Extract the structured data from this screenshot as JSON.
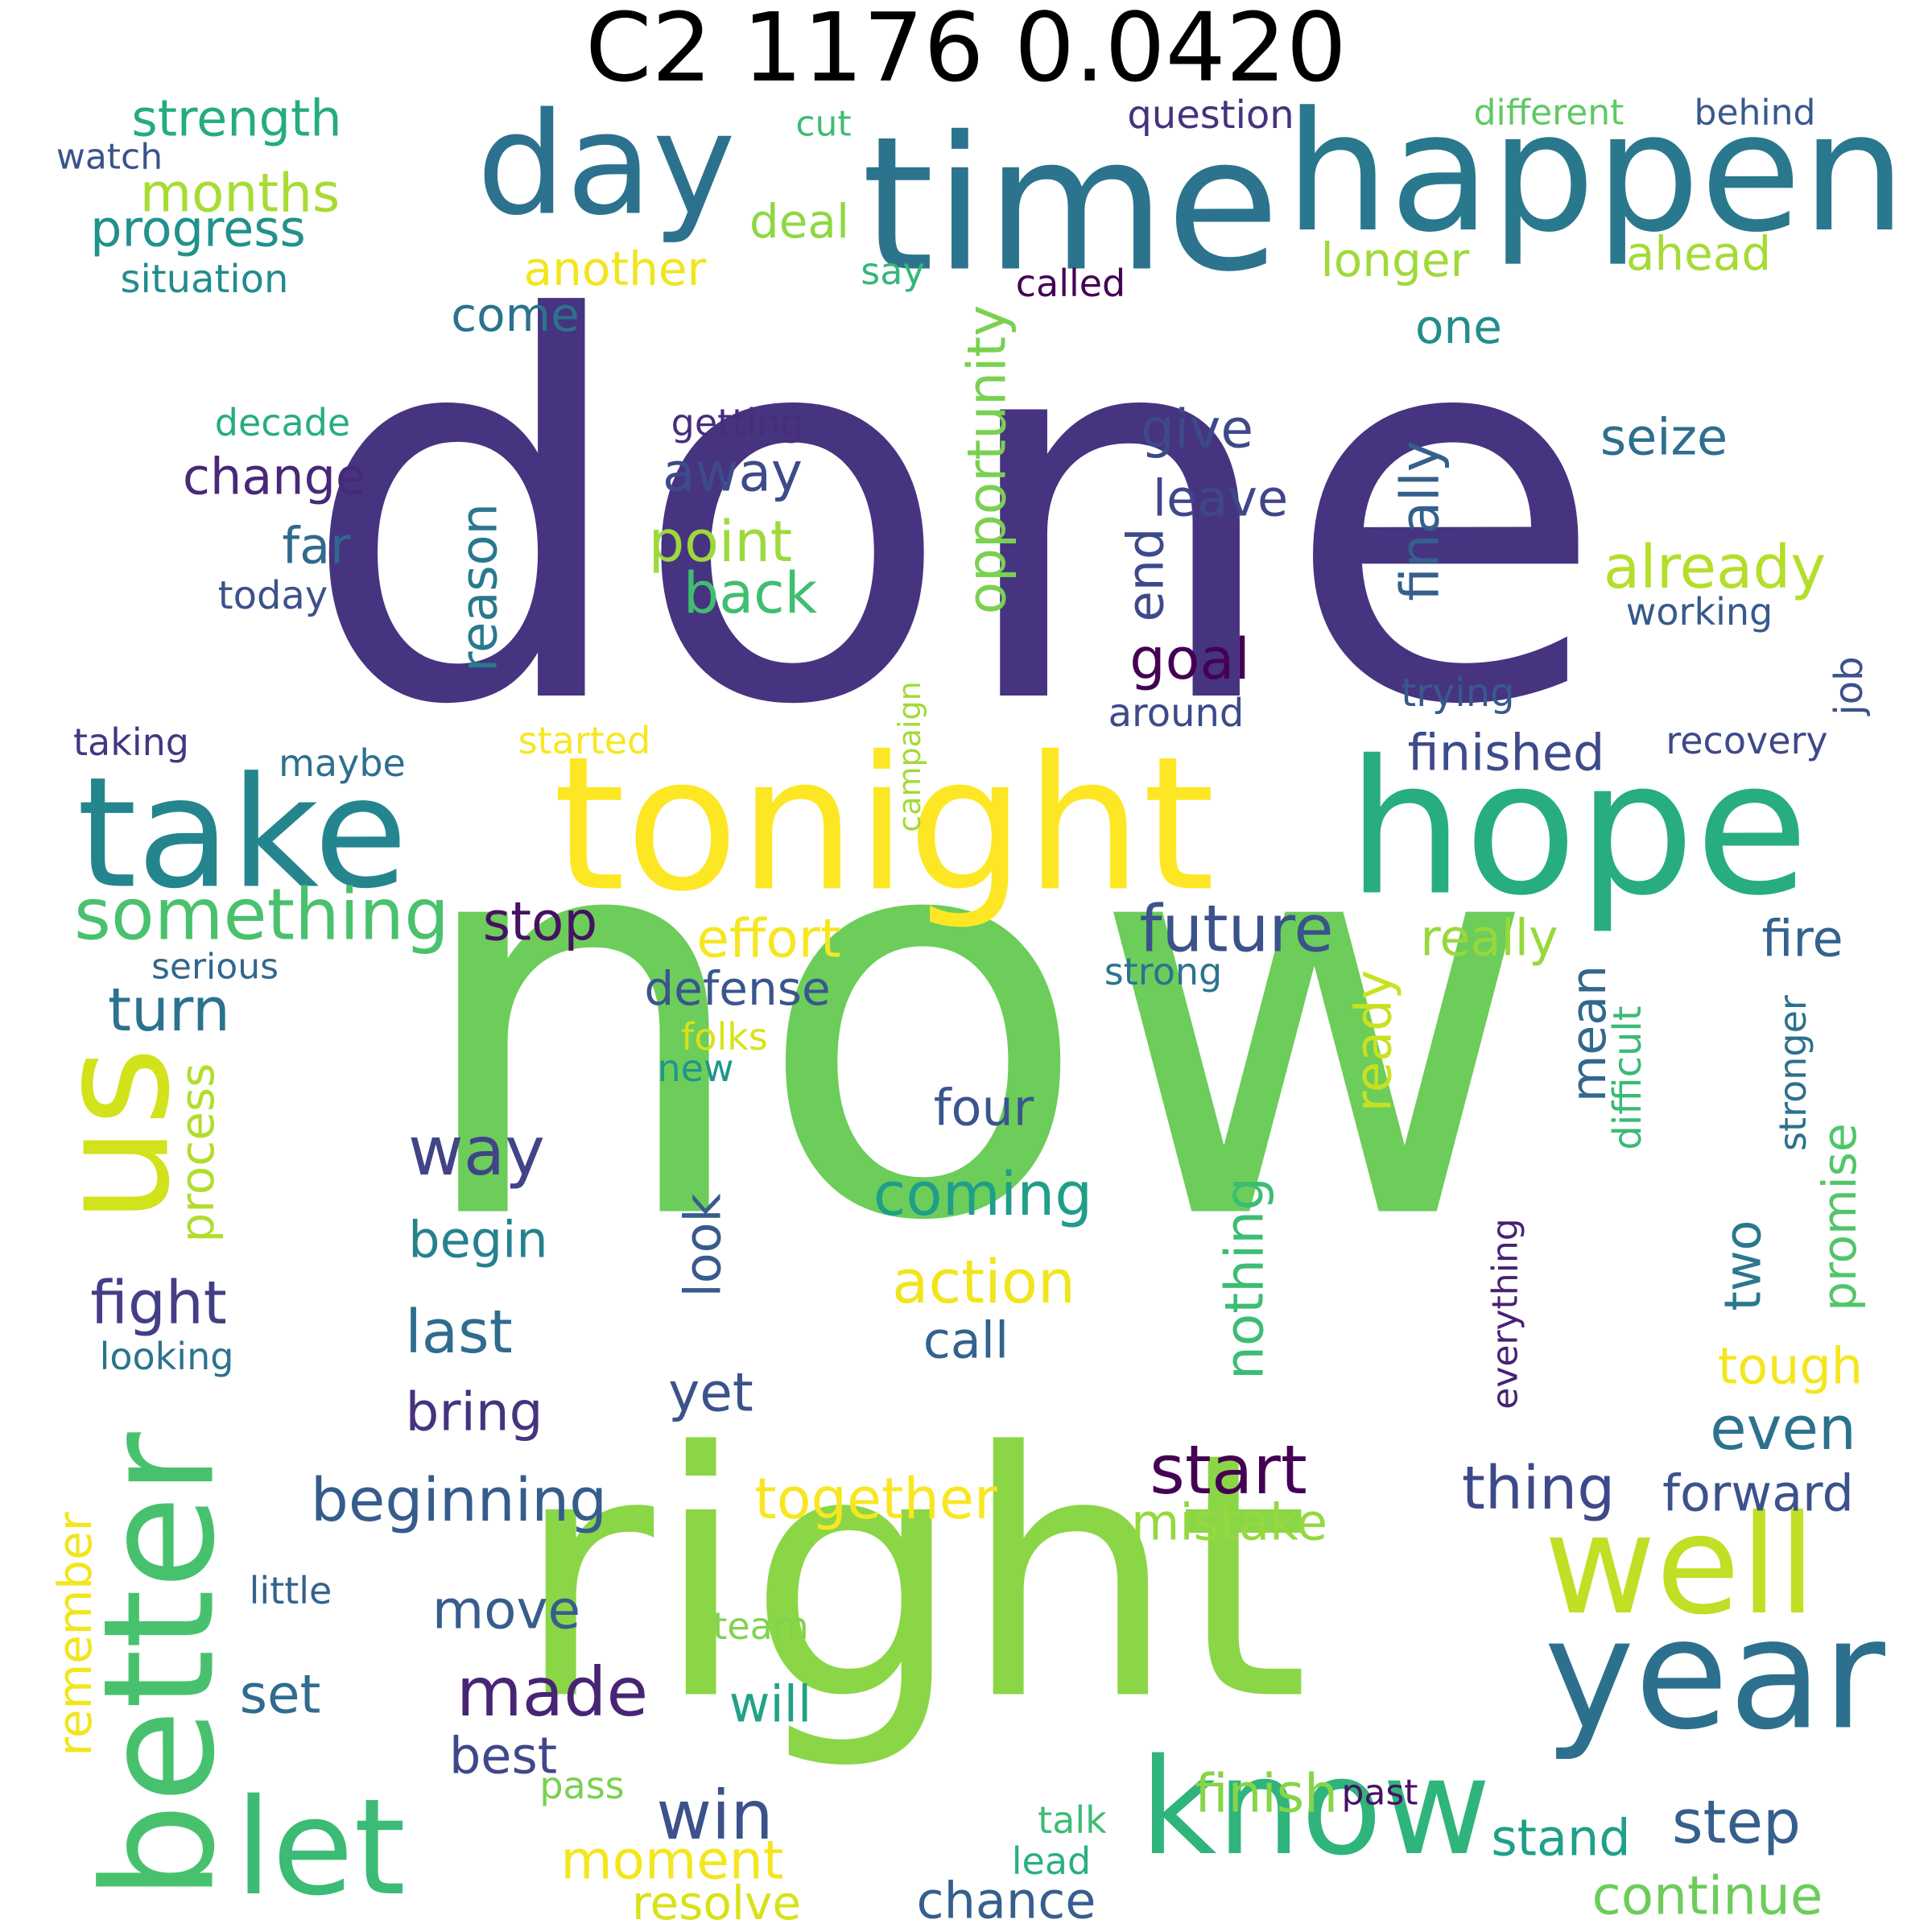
{
  "title": "C2 1176 0.0420",
  "words": [
    {
      "text": "done",
      "color": "#463480"
    },
    {
      "text": "now",
      "color": "#6ccd5a"
    },
    {
      "text": "right",
      "color": "#8bd646"
    },
    {
      "text": "time",
      "color": "#2c738e"
    },
    {
      "text": "tonight",
      "color": "#fde725"
    },
    {
      "text": "happen",
      "color": "#2a788e"
    },
    {
      "text": "hope",
      "color": "#27ad81"
    },
    {
      "text": "take",
      "color": "#25858e"
    },
    {
      "text": "day",
      "color": "#2c728e"
    },
    {
      "text": "us",
      "color": "#d2e21b"
    },
    {
      "text": "better",
      "color": "#48c16e"
    },
    {
      "text": "let",
      "color": "#3bbb75"
    },
    {
      "text": "year",
      "color": "#2d708e"
    },
    {
      "text": "know",
      "color": "#2fb47c"
    },
    {
      "text": "well",
      "color": "#c0df25"
    },
    {
      "text": "something",
      "color": "#4ac16d"
    },
    {
      "text": "future",
      "color": "#3b528b"
    },
    {
      "text": "strength",
      "color": "#25ab82"
    },
    {
      "text": "months",
      "color": "#a8db34"
    },
    {
      "text": "progress",
      "color": "#21918c"
    },
    {
      "text": "another",
      "color": "#f1e51d"
    },
    {
      "text": "longer",
      "color": "#9fda3a"
    },
    {
      "text": "ahead",
      "color": "#a5db36"
    },
    {
      "text": "question",
      "color": "#46327e"
    },
    {
      "text": "different",
      "color": "#5ec962"
    },
    {
      "text": "behind",
      "color": "#38598c"
    },
    {
      "text": "cut",
      "color": "#3fbc73"
    },
    {
      "text": "watch",
      "color": "#3b528b"
    },
    {
      "text": "deal",
      "color": "#8fd744"
    },
    {
      "text": "say",
      "color": "#35b779"
    },
    {
      "text": "called",
      "color": "#440154"
    },
    {
      "text": "situation",
      "color": "#228c8d"
    },
    {
      "text": "come",
      "color": "#2c728e"
    },
    {
      "text": "one",
      "color": "#228d8d"
    },
    {
      "text": "opportunity",
      "color": "#7ad151"
    },
    {
      "text": "decade",
      "color": "#27ad81"
    },
    {
      "text": "getting",
      "color": "#472d7b"
    },
    {
      "text": "give",
      "color": "#3e4989"
    },
    {
      "text": "seize",
      "color": "#2e6e8e"
    },
    {
      "text": "change",
      "color": "#482878"
    },
    {
      "text": "away",
      "color": "#3e4a89"
    },
    {
      "text": "leave",
      "color": "#3f4788"
    },
    {
      "text": "finally",
      "color": "#355f8d"
    },
    {
      "text": "already",
      "color": "#b5de2b"
    },
    {
      "text": "far",
      "color": "#31688e"
    },
    {
      "text": "point",
      "color": "#9dd93b"
    },
    {
      "text": "reason",
      "color": "#2a788e"
    },
    {
      "text": "end",
      "color": "#3e4989"
    },
    {
      "text": "today",
      "color": "#3b528b"
    },
    {
      "text": "back",
      "color": "#40bd72"
    },
    {
      "text": "working",
      "color": "#38598c"
    },
    {
      "text": "goal",
      "color": "#440154"
    },
    {
      "text": "job",
      "color": "#3b528b"
    },
    {
      "text": "trying",
      "color": "#38598c"
    },
    {
      "text": "around",
      "color": "#3e4a89"
    },
    {
      "text": "taking",
      "color": "#453581"
    },
    {
      "text": "started",
      "color": "#f8e621"
    },
    {
      "text": "campaign",
      "color": "#a2da37"
    },
    {
      "text": "finished",
      "color": "#3e4a89"
    },
    {
      "text": "recovery",
      "color": "#3e4989"
    },
    {
      "text": "maybe",
      "color": "#2d708e"
    },
    {
      "text": "stop",
      "color": "#471063"
    },
    {
      "text": "effort",
      "color": "#f6e620"
    },
    {
      "text": "really",
      "color": "#98d83e"
    },
    {
      "text": "fire",
      "color": "#34618d"
    },
    {
      "text": "serious",
      "color": "#31678e"
    },
    {
      "text": "strong",
      "color": "#2b748e"
    },
    {
      "text": "turn",
      "color": "#2c728e"
    },
    {
      "text": "defense",
      "color": "#39568c"
    },
    {
      "text": "mean",
      "color": "#31688e"
    },
    {
      "text": "folks",
      "color": "#d8e219"
    },
    {
      "text": "ready",
      "color": "#cae11f"
    },
    {
      "text": "difficult",
      "color": "#3aba76"
    },
    {
      "text": "stronger",
      "color": "#2d708e"
    },
    {
      "text": "new",
      "color": "#1f968b"
    },
    {
      "text": "process",
      "color": "#b2dd2d"
    },
    {
      "text": "four",
      "color": "#39568c"
    },
    {
      "text": "way",
      "color": "#414487"
    },
    {
      "text": "coming",
      "color": "#1f9e89"
    },
    {
      "text": "promise",
      "color": "#52c569"
    },
    {
      "text": "look",
      "color": "#375b8d"
    },
    {
      "text": "begin",
      "color": "#26818e"
    },
    {
      "text": "action",
      "color": "#f1e51d"
    },
    {
      "text": "two",
      "color": "#2a788e"
    },
    {
      "text": "nothing",
      "color": "#3dbc74"
    },
    {
      "text": "everything",
      "color": "#482173"
    },
    {
      "text": "fight",
      "color": "#433e85"
    },
    {
      "text": "last",
      "color": "#2f6c8e"
    },
    {
      "text": "call",
      "color": "#33638d"
    },
    {
      "text": "looking",
      "color": "#2c738e"
    },
    {
      "text": "tough",
      "color": "#f4e61e"
    },
    {
      "text": "yet",
      "color": "#3b528b"
    },
    {
      "text": "bring",
      "color": "#46337f"
    },
    {
      "text": "even",
      "color": "#2c728e"
    },
    {
      "text": "start",
      "color": "#440154"
    },
    {
      "text": "beginning",
      "color": "#365c8d"
    },
    {
      "text": "together",
      "color": "#f8e621"
    },
    {
      "text": "thing",
      "color": "#3e4989"
    },
    {
      "text": "forward",
      "color": "#3b528b"
    },
    {
      "text": "mistake",
      "color": "#95d840"
    },
    {
      "text": "remember",
      "color": "#f1e51d"
    },
    {
      "text": "little",
      "color": "#33638d"
    },
    {
      "text": "move",
      "color": "#365d8d"
    },
    {
      "text": "team",
      "color": "#7fd34e"
    },
    {
      "text": "set",
      "color": "#2f6c8e"
    },
    {
      "text": "made",
      "color": "#482475"
    },
    {
      "text": "will",
      "color": "#20a386"
    },
    {
      "text": "best",
      "color": "#3f4889"
    },
    {
      "text": "pass",
      "color": "#7ad151"
    },
    {
      "text": "finish",
      "color": "#86d549"
    },
    {
      "text": "past",
      "color": "#471164"
    },
    {
      "text": "talk",
      "color": "#3dbc74"
    },
    {
      "text": "win",
      "color": "#3b528b"
    },
    {
      "text": "step",
      "color": "#355f8d"
    },
    {
      "text": "stand",
      "color": "#1fa088"
    },
    {
      "text": "lead",
      "color": "#2ab07f"
    },
    {
      "text": "moment",
      "color": "#f4e61e"
    },
    {
      "text": "continue",
      "color": "#6ccd5a"
    },
    {
      "text": "resolve",
      "color": "#d8e219"
    },
    {
      "text": "chance",
      "color": "#355f8d"
    }
  ]
}
